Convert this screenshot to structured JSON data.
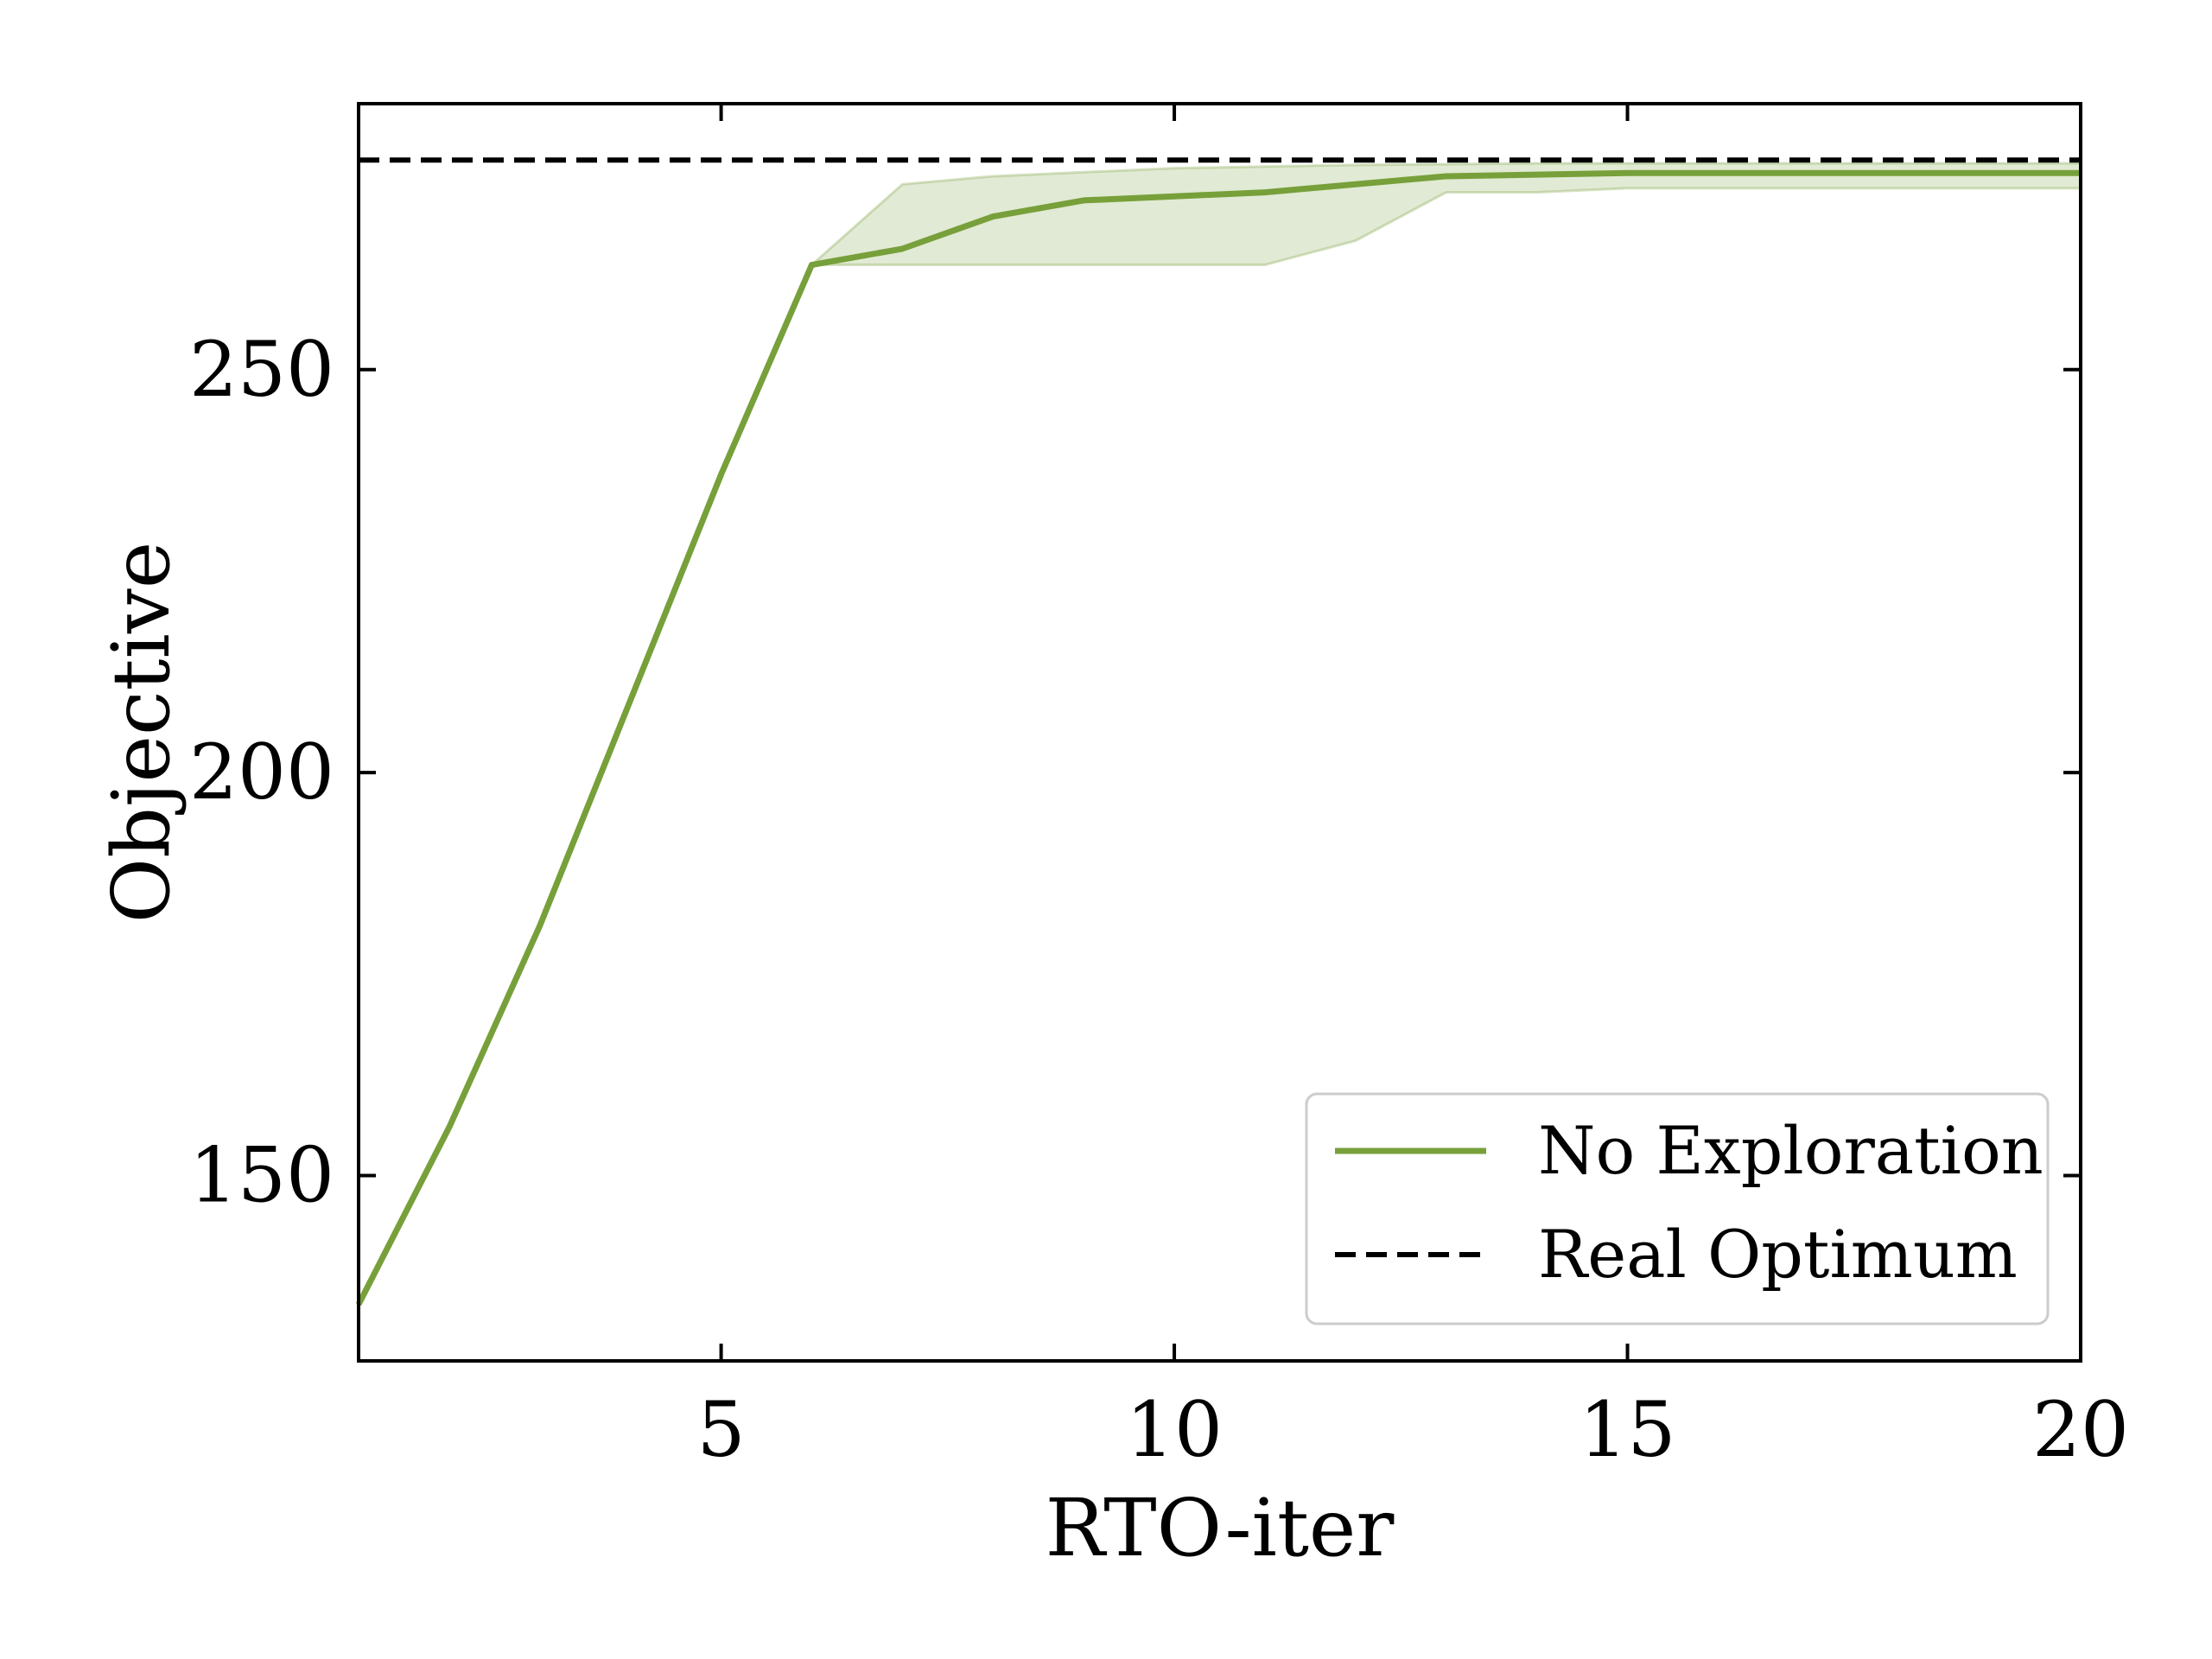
{
  "chart_data": {
    "type": "line",
    "title": "",
    "xlabel": "RTO-iter",
    "ylabel": "Objective",
    "xlim": [
      1,
      20
    ],
    "ylim": [
      127,
      283
    ],
    "xticks": [
      5,
      10,
      15,
      20
    ],
    "xtick_labels": [
      "5",
      "10",
      "15",
      "20"
    ],
    "yticks": [
      150,
      200,
      250
    ],
    "ytick_labels": [
      "150",
      "200",
      "250"
    ],
    "grid": false,
    "legend_position": "lower-right",
    "series": [
      {
        "name": "No Exploration",
        "color": "#77a03a",
        "style": "solid",
        "x": [
          1,
          2,
          3,
          4,
          5,
          6,
          7,
          8,
          9,
          10,
          11,
          12,
          13,
          14,
          15,
          16,
          17,
          18,
          19,
          20
        ],
        "y": [
          134,
          156,
          181,
          209,
          237,
          263,
          265,
          269,
          271,
          271.5,
          272,
          273,
          274,
          274.2,
          274.4,
          274.4,
          274.4,
          274.4,
          274.4,
          274.4
        ],
        "band_upper": [
          134,
          156,
          181,
          209,
          237,
          263,
          273,
          274,
          274.5,
          275,
          275.2,
          275.4,
          275.5,
          275.6,
          275.6,
          275.6,
          275.6,
          275.6,
          275.6,
          275.6
        ],
        "band_lower": [
          134,
          156,
          181,
          209,
          237,
          263,
          263,
          263,
          263,
          263,
          263,
          266,
          272,
          272,
          272.5,
          272.5,
          272.5,
          272.5,
          272.5,
          272.5
        ]
      },
      {
        "name": "Real Optimum",
        "color": "#000000",
        "style": "dashed",
        "x": [
          1,
          20
        ],
        "y": [
          276,
          276
        ]
      }
    ]
  }
}
